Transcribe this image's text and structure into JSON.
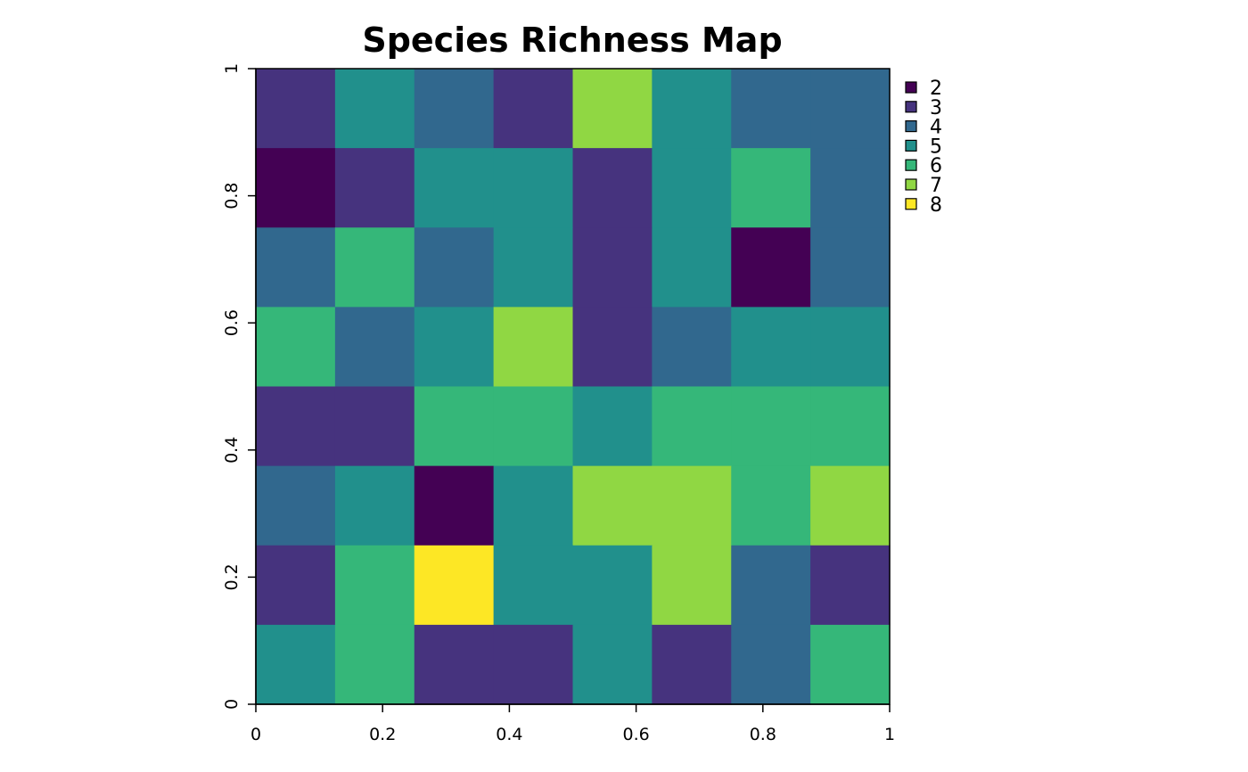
{
  "chart_data": {
    "type": "heatmap",
    "title": "Species Richness Map",
    "xlabel": "",
    "ylabel": "",
    "xlim": [
      0,
      1
    ],
    "ylim": [
      0,
      1
    ],
    "x_ticks": [
      0,
      0.2,
      0.4,
      0.6,
      0.8,
      1
    ],
    "x_tick_labels": [
      "0",
      "0.2",
      "0.4",
      "0.6",
      "0.8",
      "1"
    ],
    "y_ticks": [
      0,
      0.2,
      0.4,
      0.6,
      0.8,
      1
    ],
    "y_tick_labels": [
      "0",
      "0.2",
      "0.4",
      "0.6",
      "0.8",
      "1"
    ],
    "grid": false,
    "legend_position": "right",
    "legend": [
      {
        "value": 2,
        "label": "2",
        "color": "#440154"
      },
      {
        "value": 3,
        "label": "3",
        "color": "#46337e"
      },
      {
        "value": 4,
        "label": "4",
        "color": "#31688e"
      },
      {
        "value": 5,
        "label": "5",
        "color": "#21908c"
      },
      {
        "value": 6,
        "label": "6",
        "color": "#35b779"
      },
      {
        "value": 7,
        "label": "7",
        "color": "#90d743"
      },
      {
        "value": 8,
        "label": "8",
        "color": "#fde725"
      }
    ],
    "rows_top_to_bottom": [
      [
        3,
        5,
        4,
        3,
        7,
        5,
        4,
        4
      ],
      [
        2,
        3,
        5,
        5,
        3,
        5,
        6,
        4
      ],
      [
        4,
        6,
        4,
        5,
        3,
        5,
        2,
        4
      ],
      [
        6,
        4,
        5,
        7,
        3,
        4,
        5,
        5
      ],
      [
        3,
        3,
        6,
        6,
        5,
        6,
        6,
        6
      ],
      [
        4,
        5,
        2,
        5,
        7,
        7,
        6,
        7
      ],
      [
        3,
        6,
        8,
        5,
        5,
        7,
        4,
        3
      ],
      [
        5,
        6,
        3,
        3,
        5,
        3,
        4,
        6
      ]
    ]
  }
}
